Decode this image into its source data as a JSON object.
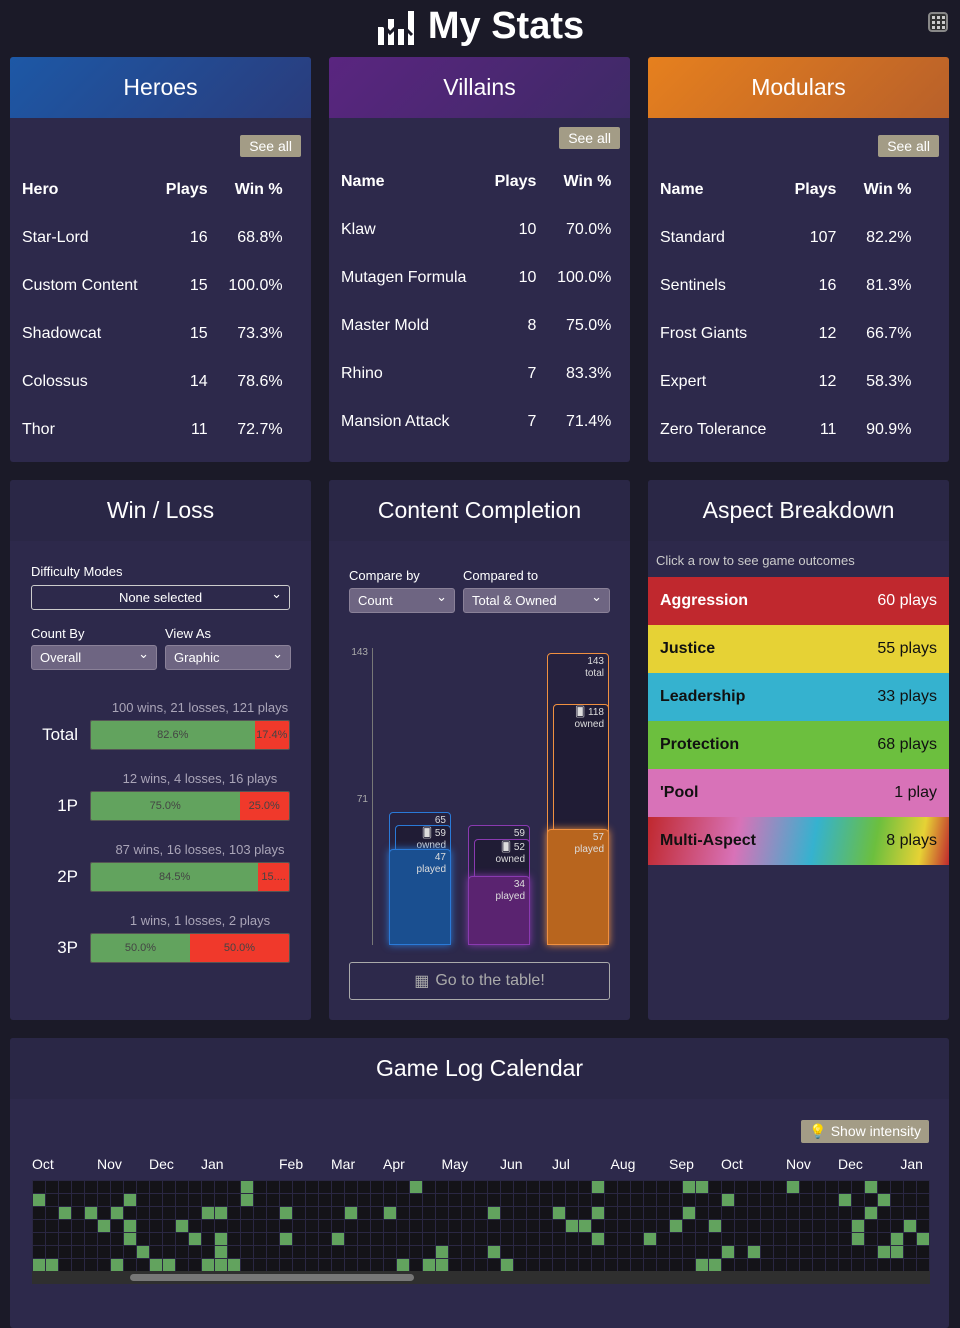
{
  "header": {
    "title": "My Stats",
    "logo_icon": "chart-stats-icon",
    "calendar_icon": "calendar-icon"
  },
  "heroes": {
    "title": "Heroes",
    "see_all": "See all",
    "columns": [
      "Hero",
      "Plays",
      "Win %"
    ],
    "rows": [
      [
        "Star-Lord",
        "16",
        "68.8%"
      ],
      [
        "Custom Content",
        "15",
        "100.0%"
      ],
      [
        "Shadowcat",
        "15",
        "73.3%"
      ],
      [
        "Colossus",
        "14",
        "78.6%"
      ],
      [
        "Thor",
        "11",
        "72.7%"
      ]
    ]
  },
  "villains": {
    "title": "Villains",
    "see_all": "See all",
    "columns": [
      "Name",
      "Plays",
      "Win %"
    ],
    "rows": [
      [
        "Klaw",
        "10",
        "70.0%"
      ],
      [
        "Mutagen Formula",
        "10",
        "100.0%"
      ],
      [
        "Master Mold",
        "8",
        "75.0%"
      ],
      [
        "Rhino",
        "7",
        "83.3%"
      ],
      [
        "Mansion Attack",
        "7",
        "71.4%"
      ]
    ]
  },
  "modulars": {
    "title": "Modulars",
    "see_all": "See all",
    "columns": [
      "Name",
      "Plays",
      "Win %"
    ],
    "rows": [
      [
        "Standard",
        "107",
        "82.2%"
      ],
      [
        "Sentinels",
        "16",
        "81.3%"
      ],
      [
        "Frost Giants",
        "12",
        "66.7%"
      ],
      [
        "Expert",
        "12",
        "58.3%"
      ],
      [
        "Zero Tolerance",
        "11",
        "90.9%"
      ]
    ]
  },
  "winloss": {
    "title": "Win / Loss",
    "difficulty_label": "Difficulty Modes",
    "difficulty_value": "None selected",
    "count_by_label": "Count By",
    "count_by_value": "Overall",
    "view_as_label": "View As",
    "view_as_value": "Graphic",
    "rows": [
      {
        "name": "Total",
        "summary": "100 wins, 21 losses, 121 plays",
        "win": "82.6%",
        "loss": "17.4%",
        "win_pct": 82.6
      },
      {
        "name": "1P",
        "summary": "12 wins, 4 losses, 16 plays",
        "win": "75.0%",
        "loss": "25.0%",
        "win_pct": 75
      },
      {
        "name": "2P",
        "summary": "87 wins, 16 losses, 103 plays",
        "win": "84.5%",
        "loss": "15....",
        "win_pct": 84.5
      },
      {
        "name": "3P",
        "summary": "1 wins, 1 losses, 2 plays",
        "win": "50.0%",
        "loss": "50.0%",
        "win_pct": 50
      }
    ]
  },
  "completion": {
    "title": "Content Completion",
    "compare_by_label": "Compare by",
    "compare_by_value": "Count",
    "compared_to_label": "Compared to",
    "compared_to_value": "Total & Owned",
    "go_table": "Go to the table!",
    "chart_data": {
      "type": "bar",
      "y_ticks": [
        "143",
        "71"
      ],
      "ylim": [
        0,
        143
      ],
      "groups": [
        {
          "color": "#1a4f90",
          "edge": "#2a7ad8",
          "total": 65,
          "owned": 59,
          "played": 47,
          "total_label": "65",
          "owned_label": "59",
          "owned_word": "owned",
          "played_label": "47",
          "played_word": "played"
        },
        {
          "color": "#5a2370",
          "edge": "#8a3ab0",
          "total": 59,
          "owned": 52,
          "played": 34,
          "total_label": "59",
          "owned_label": "52",
          "owned_word": "owned",
          "played_label": "34",
          "played_word": "played"
        },
        {
          "color": "#b8651e",
          "edge": "#f09040",
          "total": 143,
          "owned": 118,
          "played": 57,
          "total_label": "143",
          "total_word": "total",
          "owned_label": "118",
          "owned_word": "owned",
          "played_label": "57",
          "played_word": "played"
        }
      ]
    }
  },
  "aspects": {
    "title": "Aspect Breakdown",
    "hint": "Click a row to see game outcomes",
    "rows": [
      {
        "name": "Aggression",
        "plays": "60 plays",
        "color": "#c0282e"
      },
      {
        "name": "Justice",
        "plays": "55 plays",
        "color": "#e6d235"
      },
      {
        "name": "Leadership",
        "plays": "33 plays",
        "color": "#35b2cf"
      },
      {
        "name": "Protection",
        "plays": "68 plays",
        "color": "#6cbf3e"
      },
      {
        "name": "'Pool",
        "plays": "1 play",
        "color": "#d872b8"
      },
      {
        "name": "Multi-Aspect",
        "plays": "8 plays",
        "color": "multi"
      }
    ]
  },
  "calendar": {
    "title": "Game Log Calendar",
    "show_intensity": "Show intensity",
    "months": [
      "Oct",
      "Nov",
      "Dec",
      "Jan",
      "Feb",
      "Mar",
      "Apr",
      "May",
      "Jun",
      "Jul",
      "Aug",
      "Sep",
      "Oct",
      "Nov",
      "Dec",
      "Jan"
    ],
    "played_cells": [
      [
        16,
        0
      ],
      [
        29,
        0
      ],
      [
        43,
        0
      ],
      [
        50,
        0
      ],
      [
        51,
        0
      ],
      [
        58,
        0
      ],
      [
        64,
        0
      ],
      [
        0,
        1
      ],
      [
        7,
        1
      ],
      [
        16,
        1
      ],
      [
        53,
        1
      ],
      [
        62,
        1
      ],
      [
        65,
        1
      ],
      [
        2,
        2
      ],
      [
        4,
        2
      ],
      [
        6,
        2
      ],
      [
        13,
        2
      ],
      [
        14,
        2
      ],
      [
        19,
        2
      ],
      [
        24,
        2
      ],
      [
        27,
        2
      ],
      [
        35,
        2
      ],
      [
        40,
        2
      ],
      [
        43,
        2
      ],
      [
        50,
        2
      ],
      [
        64,
        2
      ],
      [
        5,
        3
      ],
      [
        7,
        3
      ],
      [
        11,
        3
      ],
      [
        41,
        3
      ],
      [
        42,
        3
      ],
      [
        49,
        3
      ],
      [
        52,
        3
      ],
      [
        63,
        3
      ],
      [
        67,
        3
      ],
      [
        7,
        4
      ],
      [
        12,
        4
      ],
      [
        14,
        4
      ],
      [
        19,
        4
      ],
      [
        23,
        4
      ],
      [
        43,
        4
      ],
      [
        47,
        4
      ],
      [
        63,
        4
      ],
      [
        66,
        4
      ],
      [
        68,
        4
      ],
      [
        8,
        5
      ],
      [
        14,
        5
      ],
      [
        31,
        5
      ],
      [
        35,
        5
      ],
      [
        53,
        5
      ],
      [
        55,
        5
      ],
      [
        65,
        5
      ],
      [
        66,
        5
      ],
      [
        0,
        6
      ],
      [
        1,
        6
      ],
      [
        6,
        6
      ],
      [
        9,
        6
      ],
      [
        10,
        6
      ],
      [
        13,
        6
      ],
      [
        14,
        6
      ],
      [
        15,
        6
      ],
      [
        28,
        6
      ],
      [
        30,
        6
      ],
      [
        31,
        6
      ],
      [
        36,
        6
      ],
      [
        51,
        6
      ],
      [
        52,
        6
      ]
    ]
  }
}
